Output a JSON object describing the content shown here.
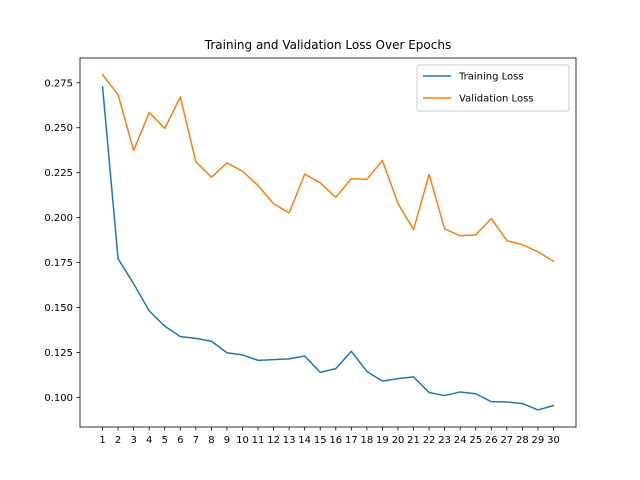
{
  "chart_data": {
    "type": "line",
    "title": "Training and Validation Loss Over Epochs",
    "xlabel": "",
    "ylabel": "",
    "x": [
      1,
      2,
      3,
      4,
      5,
      6,
      7,
      8,
      9,
      10,
      11,
      12,
      13,
      14,
      15,
      16,
      17,
      18,
      19,
      20,
      21,
      22,
      23,
      24,
      25,
      26,
      27,
      28,
      29,
      30
    ],
    "x_tick_labels": [
      "1",
      "2",
      "3",
      "4",
      "5",
      "6",
      "7",
      "8",
      "9",
      "10",
      "11",
      "12",
      "13",
      "14",
      "15",
      "16",
      "17",
      "18",
      "19",
      "20",
      "21",
      "22",
      "23",
      "24",
      "25",
      "26",
      "27",
      "28",
      "29",
      "30"
    ],
    "y_ticks": [
      0.1,
      0.125,
      0.15,
      0.175,
      0.2,
      0.225,
      0.25,
      0.275
    ],
    "y_tick_labels": [
      "0.100",
      "0.125",
      "0.150",
      "0.175",
      "0.200",
      "0.225",
      "0.250",
      "0.275"
    ],
    "xlim": [
      -0.45,
      31.45
    ],
    "ylim": [
      0.0835,
      0.2888
    ],
    "grid": false,
    "legend_position": "upper right",
    "series": [
      {
        "name": "Training Loss",
        "color": "#1f77b4",
        "values": [
          0.2728,
          0.1771,
          0.1632,
          0.1481,
          0.1396,
          0.1338,
          0.1328,
          0.1312,
          0.1248,
          0.1236,
          0.1206,
          0.121,
          0.1214,
          0.123,
          0.1139,
          0.116,
          0.1256,
          0.1144,
          0.109,
          0.1104,
          0.1114,
          0.1027,
          0.101,
          0.103,
          0.102,
          0.0976,
          0.0974,
          0.0966,
          0.093,
          0.0954
        ]
      },
      {
        "name": "Validation Loss",
        "color": "#ff7f0e",
        "values": [
          0.2795,
          0.2683,
          0.2373,
          0.2585,
          0.2496,
          0.2671,
          0.2311,
          0.2225,
          0.2304,
          0.2258,
          0.2178,
          0.2077,
          0.2026,
          0.2242,
          0.2193,
          0.2113,
          0.2216,
          0.2213,
          0.2318,
          0.2078,
          0.1933,
          0.224,
          0.1937,
          0.1899,
          0.1904,
          0.1995,
          0.1872,
          0.1849,
          0.181,
          0.1757
        ]
      }
    ]
  }
}
